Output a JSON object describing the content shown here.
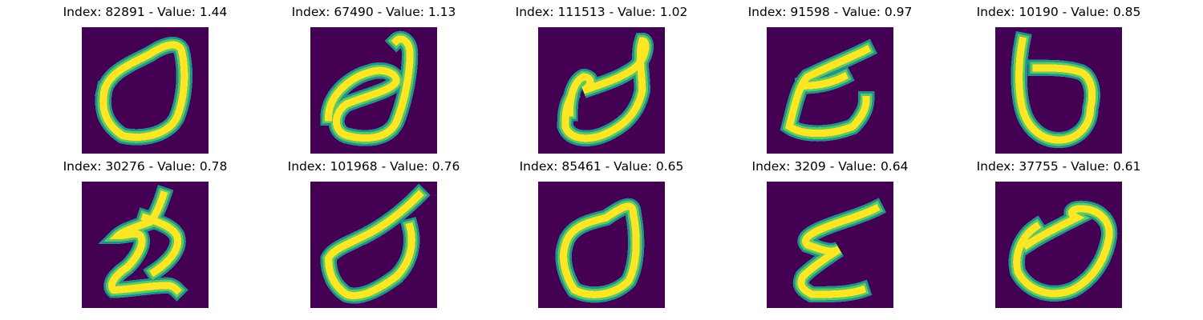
{
  "colors": {
    "background": "#440154",
    "low": "#21918c",
    "mid": "#5ec962",
    "high": "#fde725"
  },
  "panels": [
    {
      "title": "Index: 82891 - Value: 1.44",
      "glyph": "loop-a"
    },
    {
      "title": "Index: 67490 - Value: 1.13",
      "glyph": "d-loop"
    },
    {
      "title": "Index: 111513 - Value: 1.02",
      "glyph": "cup"
    },
    {
      "title": "Index: 91598 - Value: 0.97",
      "glyph": "e-shape"
    },
    {
      "title": "Index: 10190 - Value: 0.85",
      "glyph": "b-shape"
    },
    {
      "title": "Index: 30276 - Value: 0.78",
      "glyph": "two"
    },
    {
      "title": "Index: 101968 - Value: 0.76",
      "glyph": "d-curve"
    },
    {
      "title": "Index: 85461 - Value: 0.65",
      "glyph": "loop-b"
    },
    {
      "title": "Index: 3209 - Value: 0.64",
      "glyph": "z-shape"
    },
    {
      "title": "Index: 37755 - Value: 0.61",
      "glyph": "arrow-loop"
    }
  ]
}
